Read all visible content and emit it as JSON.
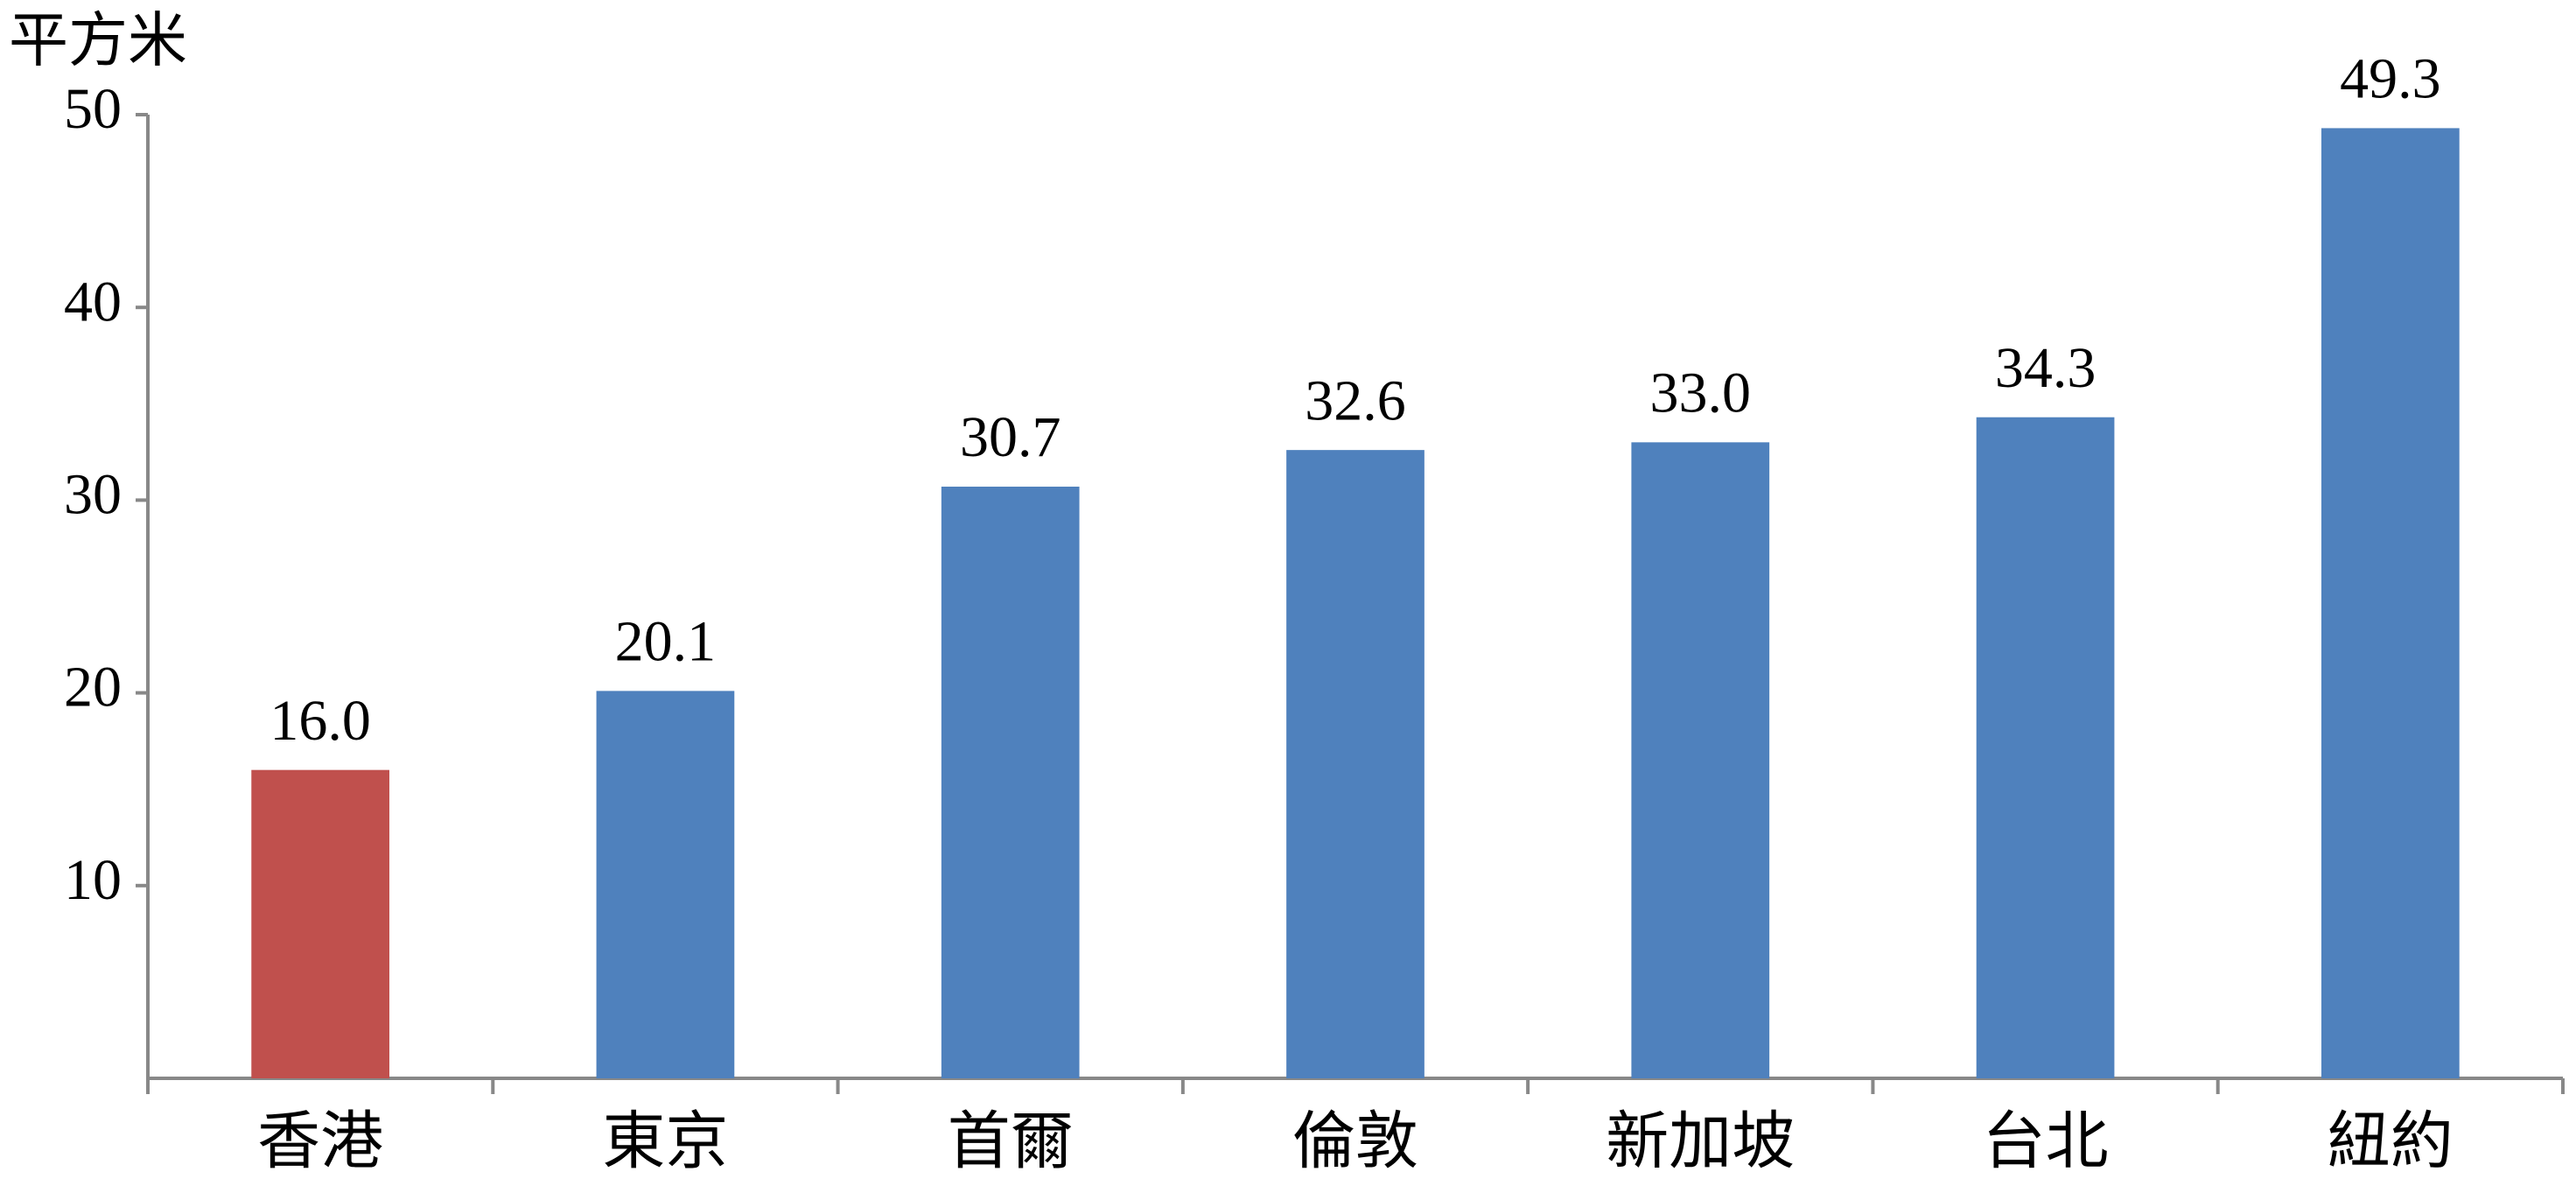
{
  "chart_data": {
    "type": "bar",
    "y_label": "平方米",
    "categories": [
      "香港",
      "東京",
      "首爾",
      "倫敦",
      "新加坡",
      "台北",
      "紐約"
    ],
    "values": [
      16.0,
      20.1,
      30.7,
      32.6,
      33.0,
      34.3,
      49.3
    ],
    "value_labels": [
      "16.0",
      "20.1",
      "30.7",
      "32.6",
      "33.0",
      "34.3",
      "49.3"
    ],
    "colors": [
      "#c0504d",
      "#4f81bd",
      "#4f81bd",
      "#4f81bd",
      "#4f81bd",
      "#4f81bd",
      "#4f81bd"
    ],
    "ylim": [
      0,
      50
    ],
    "yticks": [
      10,
      20,
      30,
      40,
      50
    ],
    "grid": false
  }
}
